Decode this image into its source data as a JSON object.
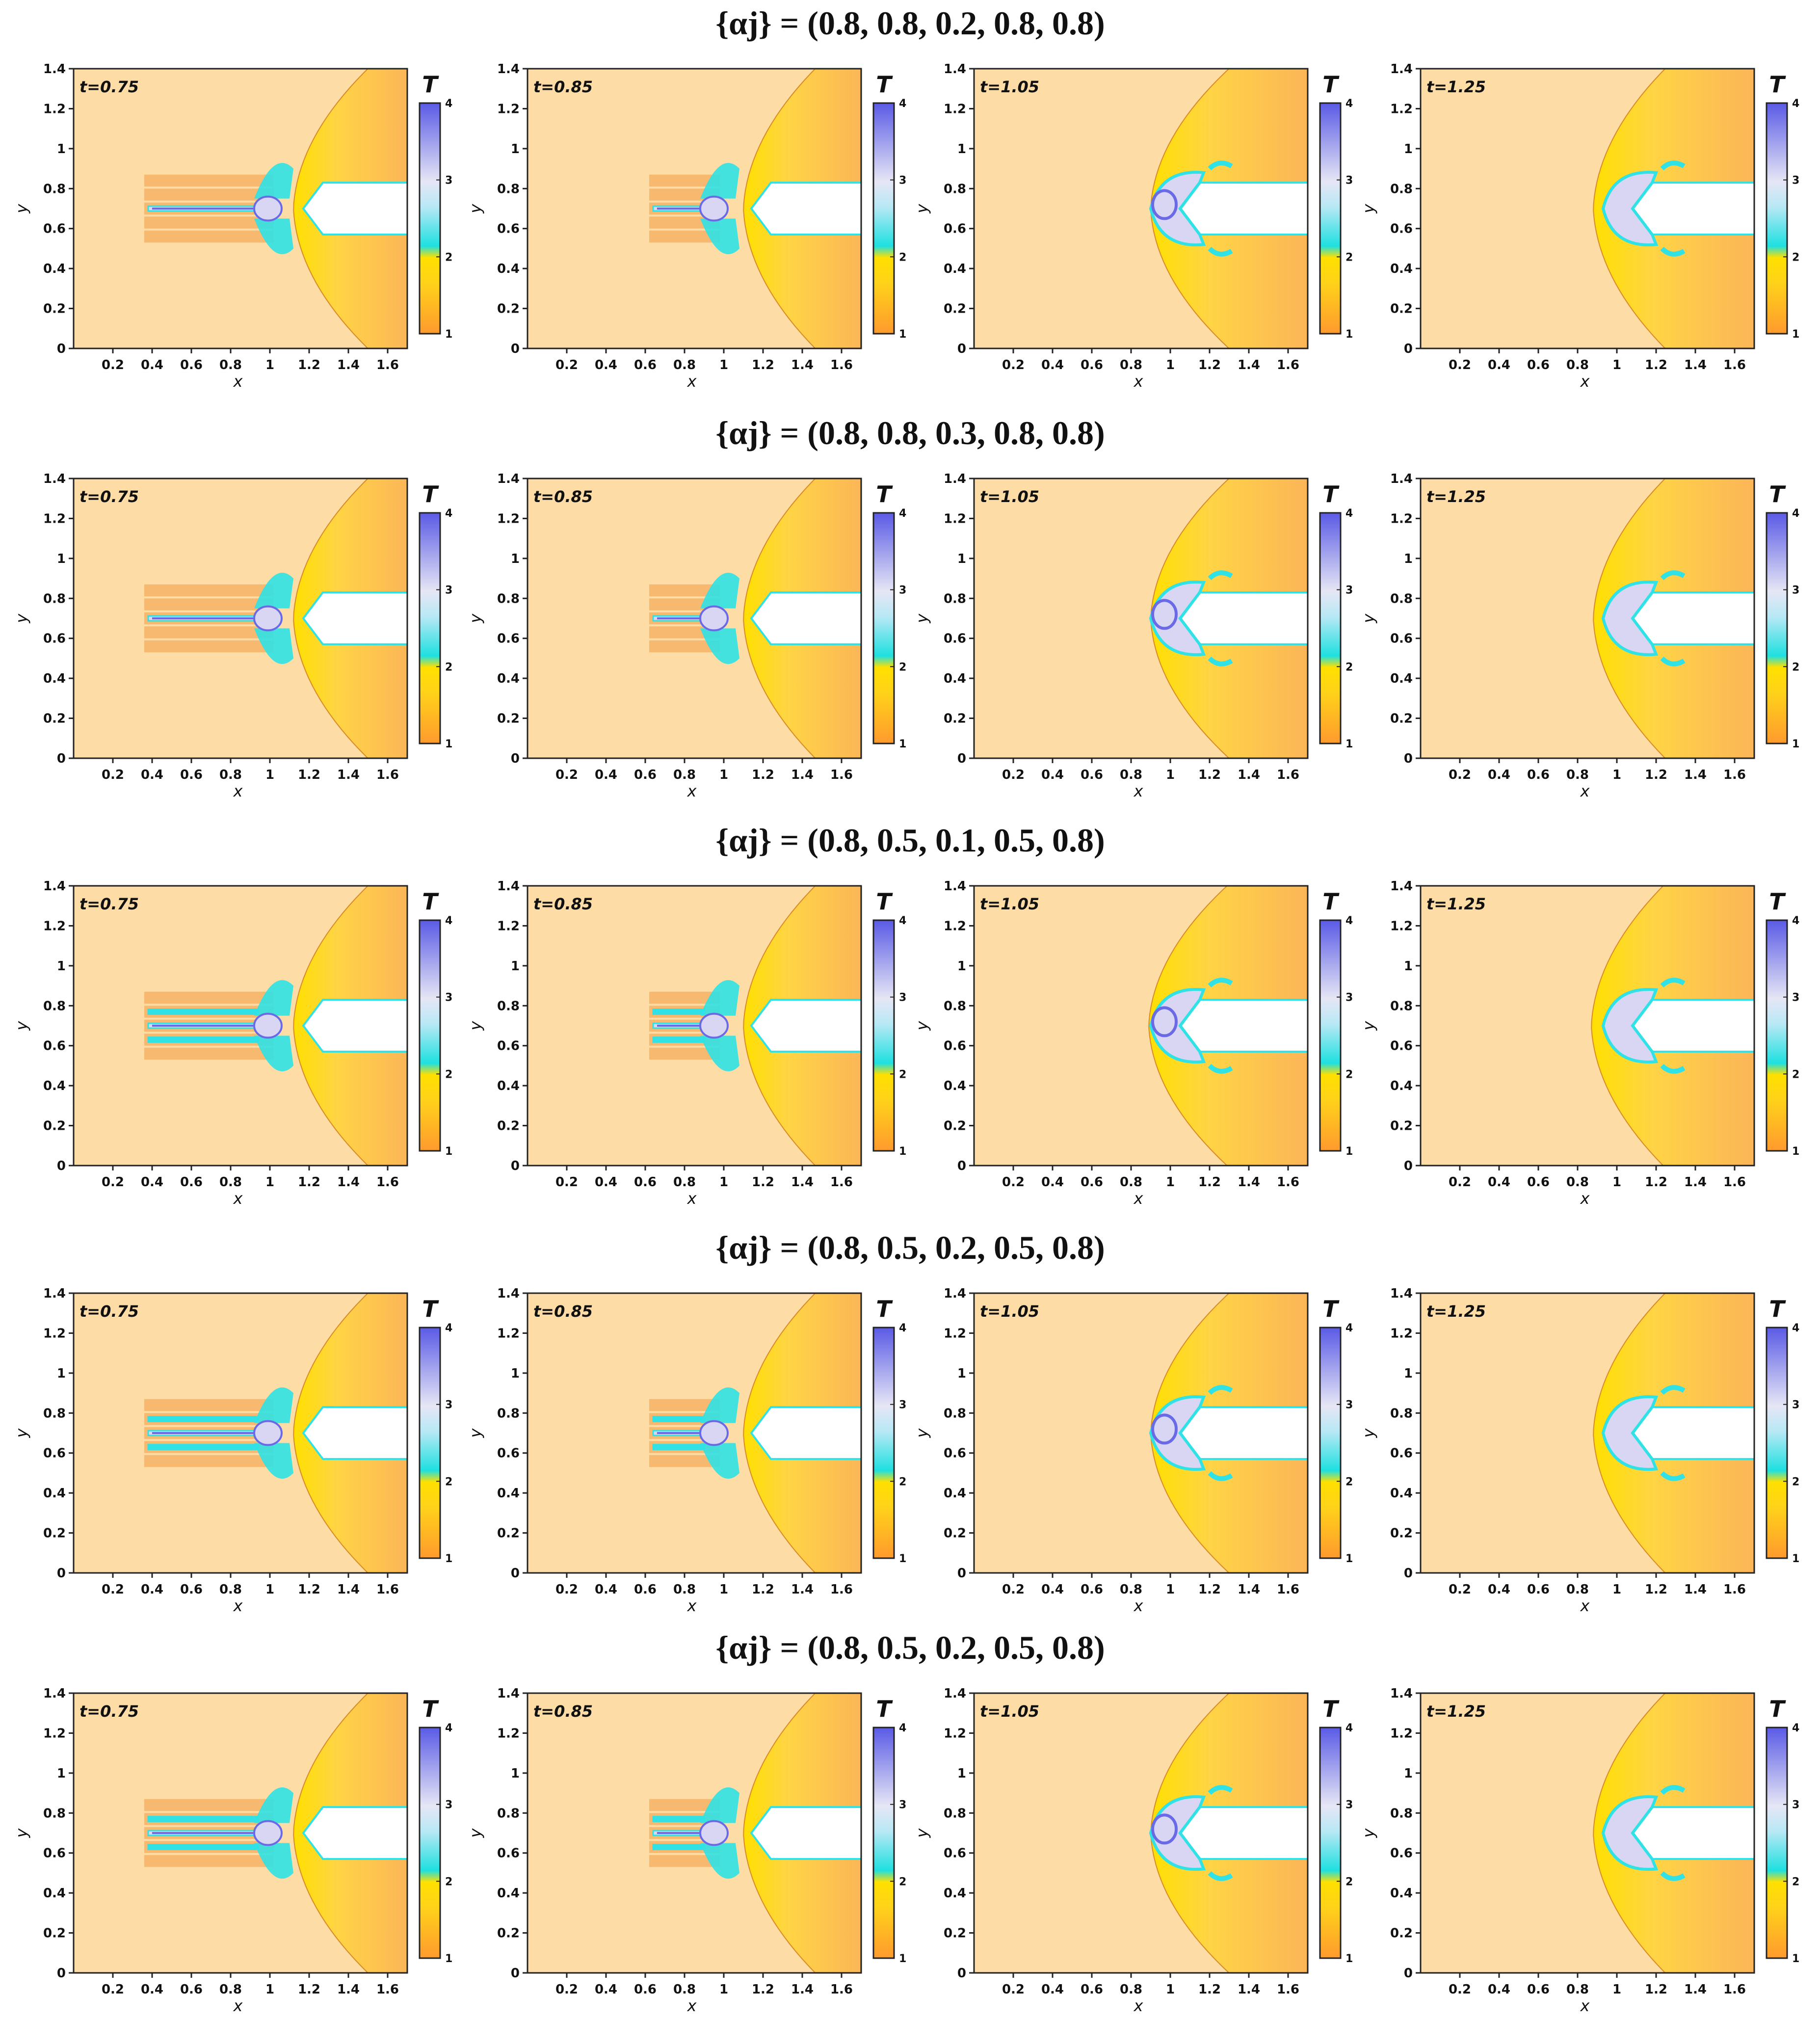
{
  "figure": {
    "rows": [
      {
        "title": "{αj} = (0.8, 0.8, 0.2, 0.8, 0.8)",
        "mid_alpha": 0.2,
        "outer_alpha": 0.8
      },
      {
        "title": "{αj} = (0.8, 0.8, 0.3, 0.8, 0.8)",
        "mid_alpha": 0.3,
        "outer_alpha": 0.8
      },
      {
        "title": "{αj} = (0.8, 0.5, 0.1, 0.5, 0.8)",
        "mid_alpha": 0.1,
        "outer_alpha": 0.5
      },
      {
        "title": "{αj} = (0.8, 0.5, 0.2, 0.5, 0.8)",
        "mid_alpha": 0.2,
        "outer_alpha": 0.5
      },
      {
        "title": "{αj} = (0.8, 0.5, 0.2, 0.5, 0.8)",
        "mid_alpha": 0.2,
        "outer_alpha": 0.5
      }
    ],
    "time_labels": [
      "t=0.75",
      "t=0.85",
      "t=1.05",
      "t=1.25"
    ],
    "colorbar": {
      "title": "T",
      "ticks": [
        "1",
        "2",
        "3",
        "4"
      ],
      "min": 1,
      "max": 4,
      "colors": [
        "#ff9a2e",
        "#ffe000",
        "#1ee0e0",
        "#e6e6f5",
        "#5a5ae6"
      ]
    },
    "axes": {
      "xlabel": "x",
      "ylabel": "y",
      "xlim": [
        0,
        1.7
      ],
      "ylim": [
        0,
        1.4
      ],
      "xticks": [
        "0.2",
        "0.4",
        "0.6",
        "0.8",
        "1",
        "1.2",
        "1.4",
        "1.6"
      ],
      "yticks": [
        "0",
        "0.2",
        "0.4",
        "0.6",
        "0.8",
        "1",
        "1.2",
        "1.4"
      ]
    },
    "colors": {
      "background_flow": "#fddca6",
      "shocked_flow": "#fbbf5e",
      "hot": "#ffe000",
      "cyan": "#30e2e6",
      "lavender": "#d8d6f2",
      "blue": "#6a6ae6",
      "wall": "#ffffff"
    }
  }
}
